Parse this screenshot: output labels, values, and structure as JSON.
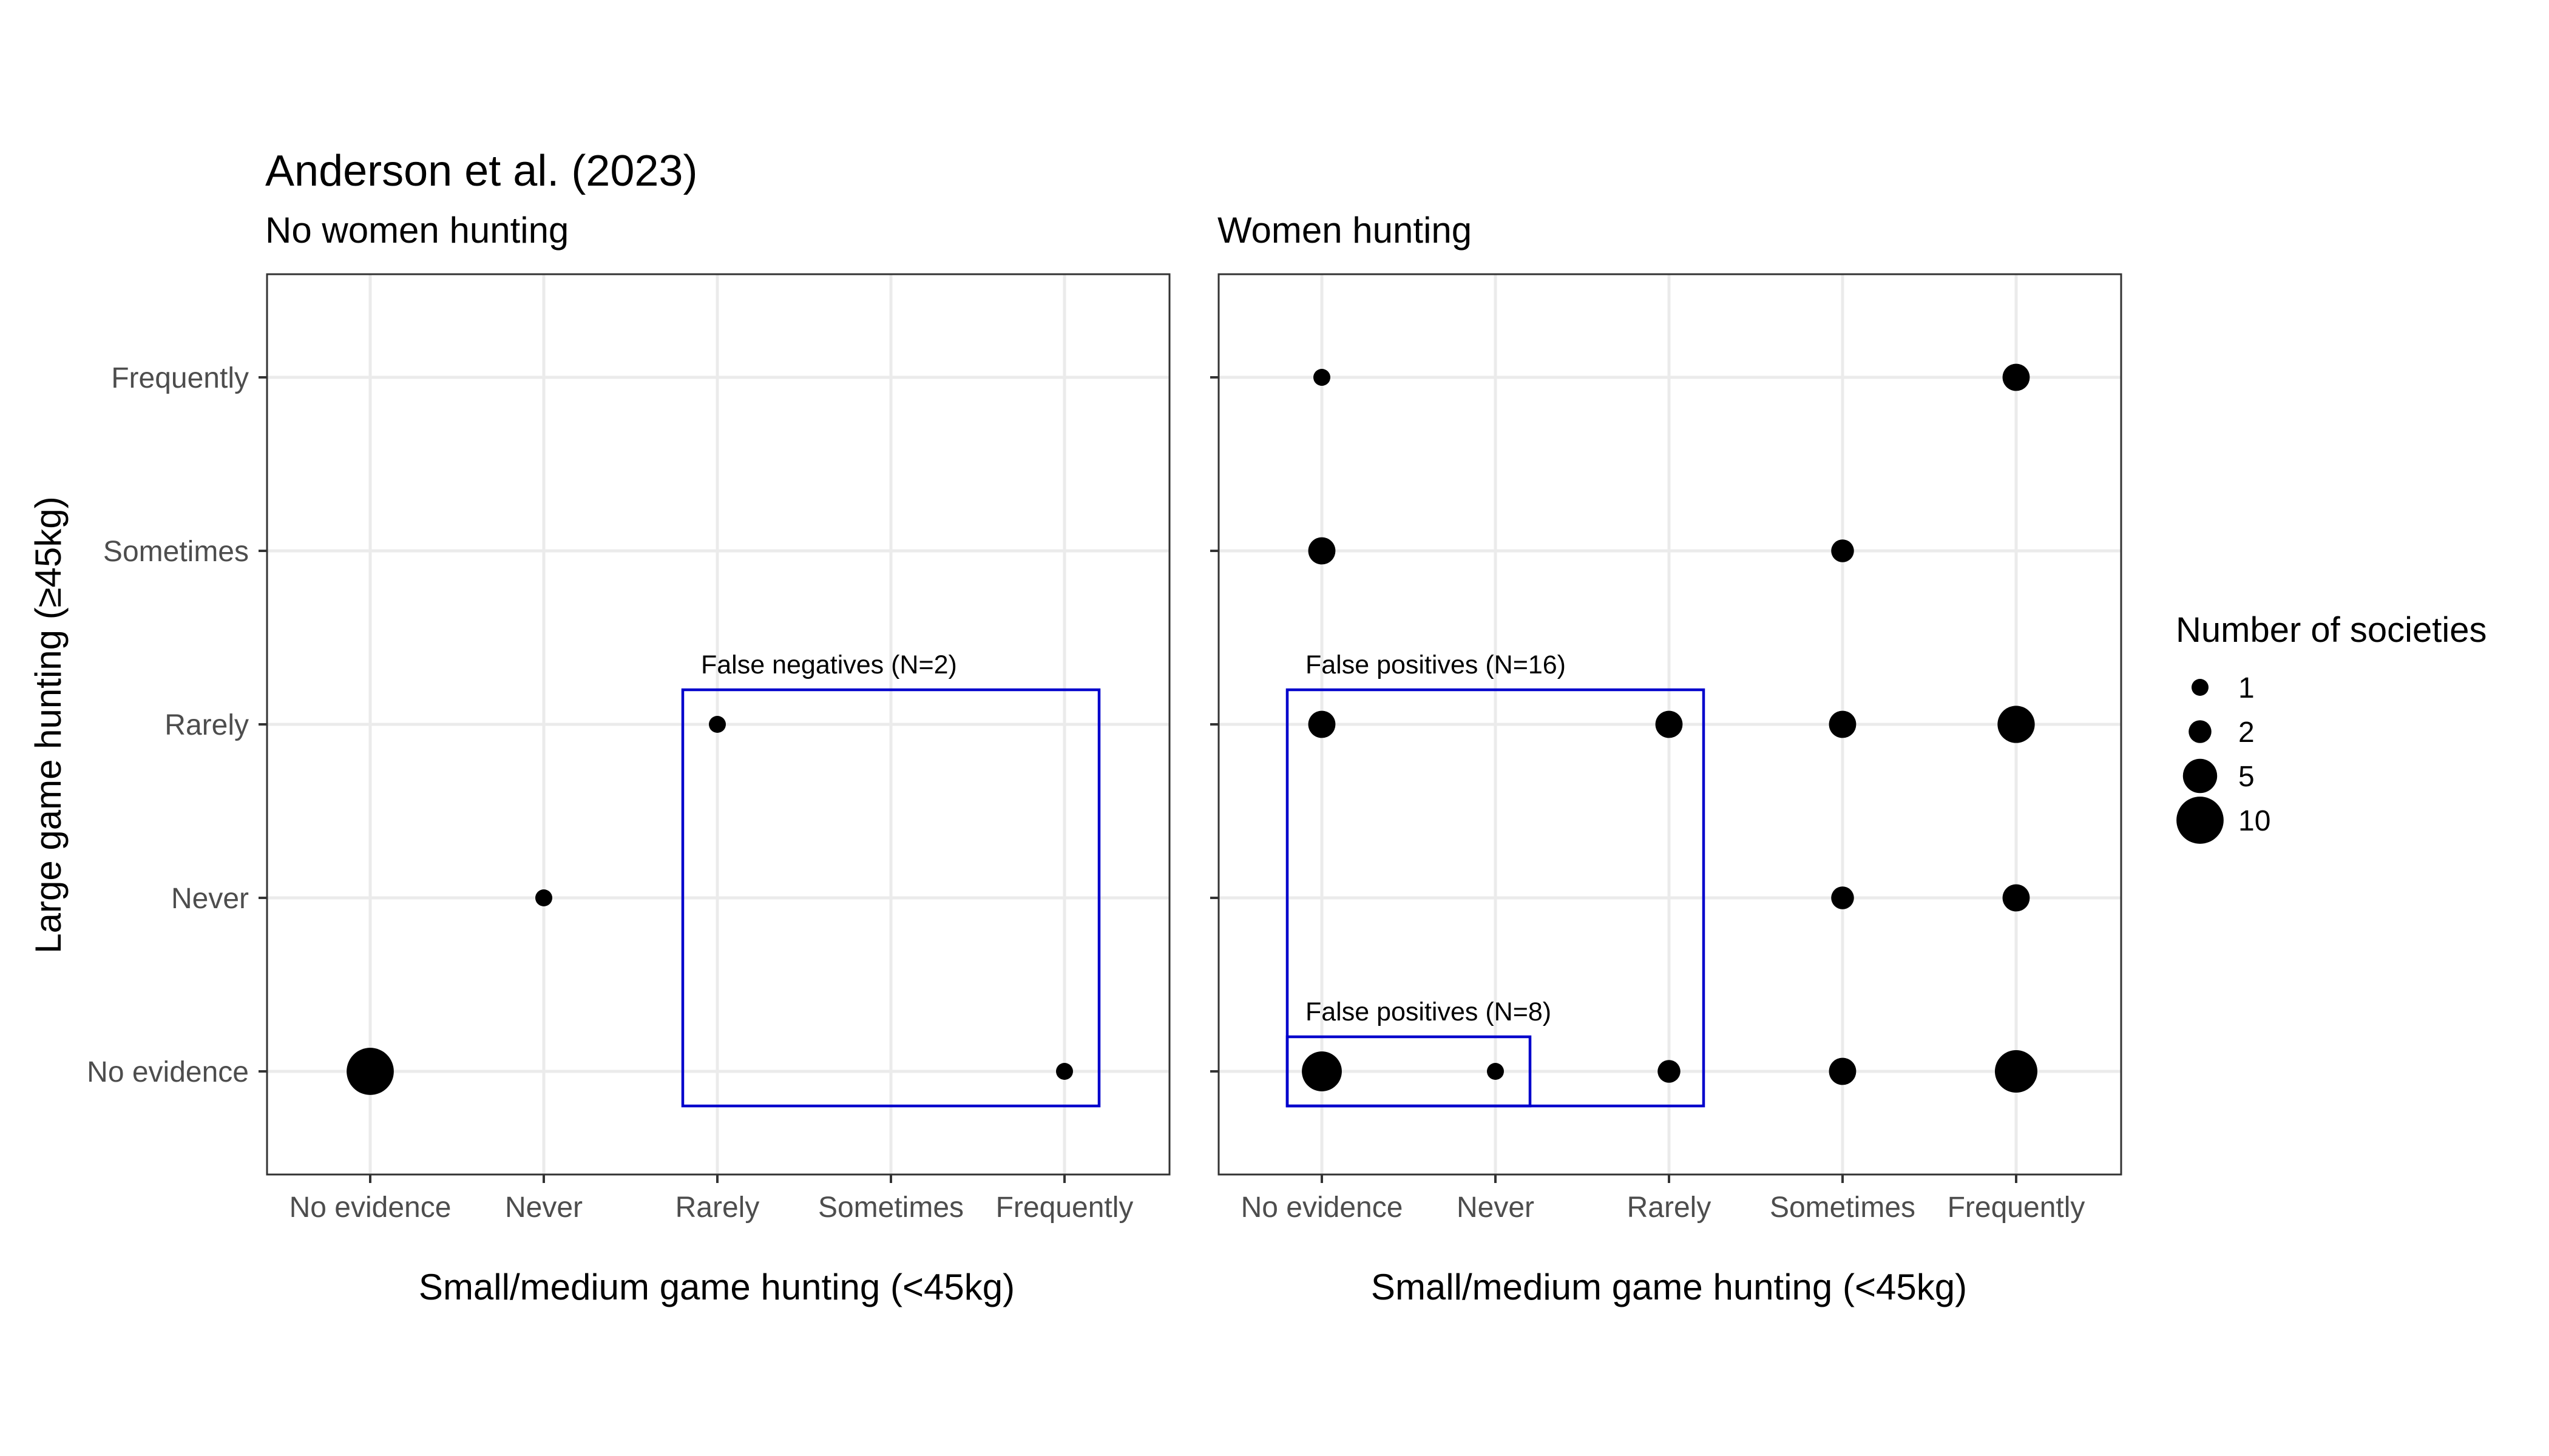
{
  "chart_data": {
    "type": "scatter",
    "title": "Anderson et al. (2023)",
    "xlabel": "Small/medium game hunting (<45kg)",
    "ylabel": "Large game hunting (≥45kg)",
    "categories_x": [
      "No evidence",
      "Never",
      "Rarely",
      "Sometimes",
      "Frequently"
    ],
    "categories_y": [
      "No evidence",
      "Never",
      "Rarely",
      "Sometimes",
      "Frequently"
    ],
    "grid": true,
    "size_legend": {
      "title": "Number of societies",
      "position": "right",
      "entries": [
        {
          "label": "1",
          "value": 1
        },
        {
          "label": "2",
          "value": 2
        },
        {
          "label": "5",
          "value": 5
        },
        {
          "label": "10",
          "value": 10
        }
      ]
    },
    "panels": [
      {
        "title": "No women hunting",
        "points": [
          {
            "x": "No evidence",
            "y": "No evidence",
            "n": 10
          },
          {
            "x": "Never",
            "y": "Never",
            "n": 1
          },
          {
            "x": "Rarely",
            "y": "Rarely",
            "n": 1
          },
          {
            "x": "Frequently",
            "y": "No evidence",
            "n": 1
          }
        ],
        "boxes": [
          {
            "label": "False negatives (N=2)",
            "x_from": "Rarely",
            "x_to": "Frequently",
            "y_from": "No evidence",
            "y_to": "Rarely"
          }
        ]
      },
      {
        "title": "Women hunting",
        "points": [
          {
            "x": "No evidence",
            "y": "Frequently",
            "n": 1
          },
          {
            "x": "Frequently",
            "y": "Frequently",
            "n": 3
          },
          {
            "x": "No evidence",
            "y": "Sometimes",
            "n": 3
          },
          {
            "x": "Sometimes",
            "y": "Sometimes",
            "n": 2
          },
          {
            "x": "No evidence",
            "y": "Rarely",
            "n": 3
          },
          {
            "x": "Rarely",
            "y": "Rarely",
            "n": 3
          },
          {
            "x": "Sometimes",
            "y": "Rarely",
            "n": 3
          },
          {
            "x": "Frequently",
            "y": "Rarely",
            "n": 6
          },
          {
            "x": "Sometimes",
            "y": "Never",
            "n": 2
          },
          {
            "x": "Frequently",
            "y": "Never",
            "n": 3
          },
          {
            "x": "No evidence",
            "y": "No evidence",
            "n": 7
          },
          {
            "x": "Never",
            "y": "No evidence",
            "n": 1
          },
          {
            "x": "Rarely",
            "y": "No evidence",
            "n": 2
          },
          {
            "x": "Sometimes",
            "y": "No evidence",
            "n": 3
          },
          {
            "x": "Frequently",
            "y": "No evidence",
            "n": 8
          }
        ],
        "boxes": [
          {
            "label": "False positives (N=16)",
            "x_from": "No evidence",
            "x_to": "Rarely",
            "y_from": "No evidence",
            "y_to": "Rarely"
          },
          {
            "label": "False positives (N=8)",
            "x_from": "No evidence",
            "x_to": "Never",
            "y_from": "No evidence",
            "y_to": "No evidence"
          }
        ]
      }
    ],
    "colors": {
      "points": "#000000",
      "box": "#0000CC",
      "grid": "#EBEBEB",
      "panel_border": "#333333",
      "tick_text": "#4D4D4D"
    }
  }
}
